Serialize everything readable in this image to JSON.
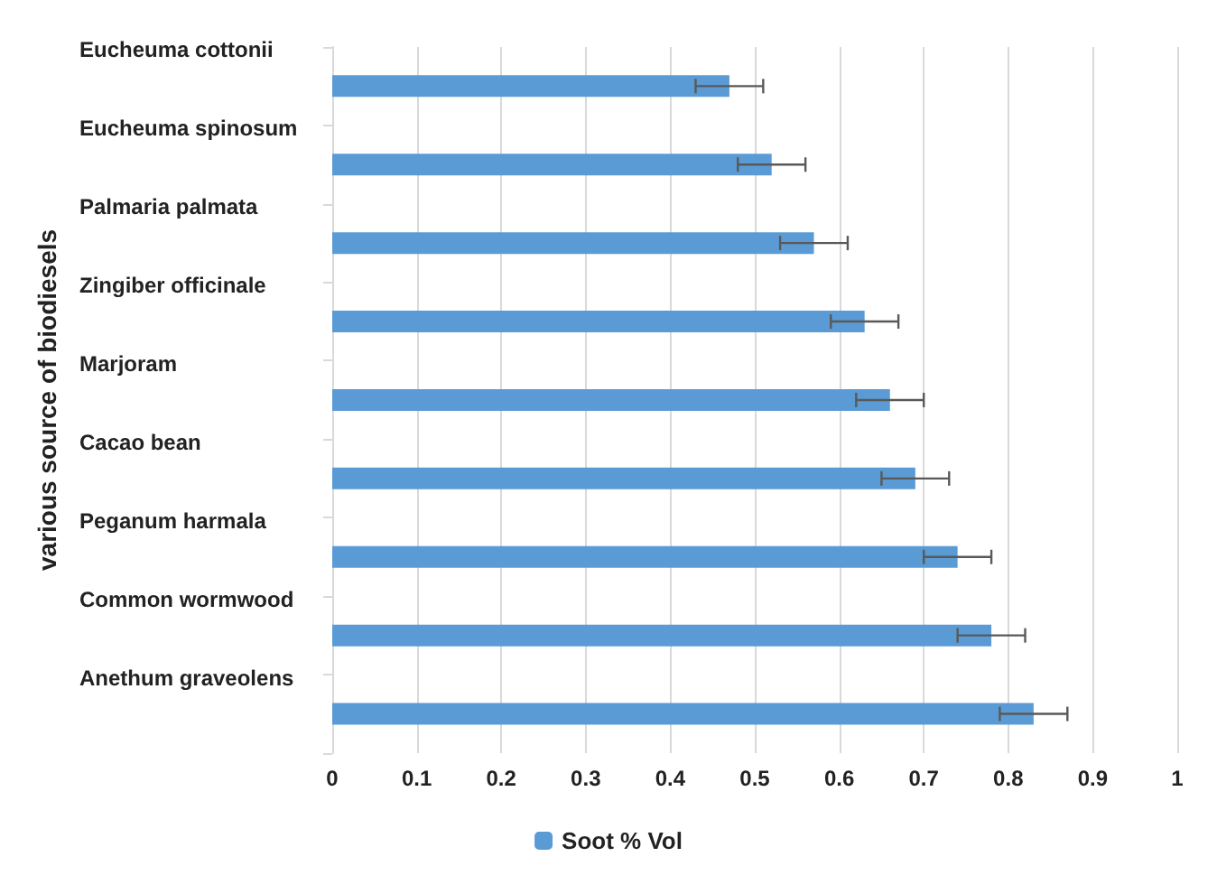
{
  "chart_data": {
    "type": "bar",
    "orientation": "horizontal",
    "ylabel": "various source of biodiesels",
    "categories": [
      "Eucheuma cottonii",
      "Eucheuma spinosum",
      "Palmaria palmata",
      "Zingiber officinale",
      "Marjoram",
      "Cacao bean",
      "Peganum harmala",
      "Common wormwood",
      "Anethum graveolens"
    ],
    "series": [
      {
        "name": "Soot % Vol",
        "color": "#5b9bd5",
        "values": [
          0.47,
          0.52,
          0.57,
          0.63,
          0.66,
          0.69,
          0.74,
          0.78,
          0.83
        ],
        "errors": [
          0.04,
          0.04,
          0.04,
          0.04,
          0.04,
          0.04,
          0.04,
          0.04,
          0.04
        ]
      }
    ],
    "xlim": [
      0,
      1
    ],
    "xticks": [
      0,
      0.1,
      0.2,
      0.3,
      0.4,
      0.5,
      0.6,
      0.7,
      0.8,
      0.9,
      1
    ],
    "grid": "x",
    "legend": "bottom"
  }
}
